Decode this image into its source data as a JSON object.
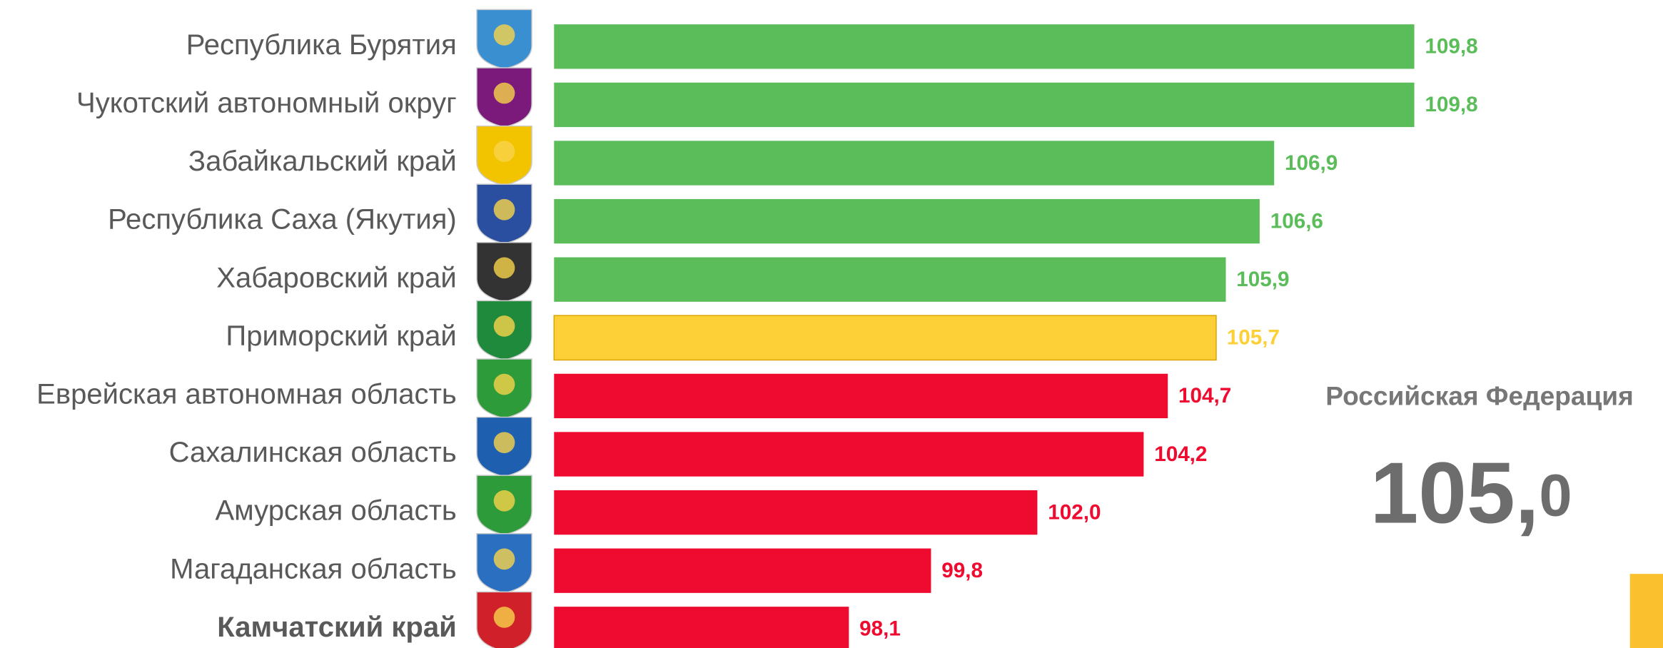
{
  "chart_data": {
    "type": "barh",
    "categories": [
      "Республика Бурятия",
      "Чукотский автономный округ",
      "Забайкальский край",
      "Республика Саха (Якутия)",
      "Хабаровский край",
      "Приморский край",
      "Еврейская автономная область",
      "Сахалинская область",
      "Амурская область",
      "Магаданская область",
      "Камчатский край"
    ],
    "values": [
      109.8,
      109.8,
      106.9,
      106.6,
      105.9,
      105.7,
      104.7,
      104.2,
      102.0,
      99.8,
      98.1
    ],
    "value_labels": [
      "109,8",
      "109,8",
      "106,9",
      "106,6",
      "105,9",
      "105,7",
      "104,7",
      "104,2",
      "102,0",
      "99,8",
      "98,1"
    ],
    "colors": [
      "#5bbd5a",
      "#5bbd5a",
      "#5bbd5a",
      "#5bbd5a",
      "#5bbd5a",
      "#fdd037",
      "#ef0a2f",
      "#ef0a2f",
      "#ef0a2f",
      "#ef0a2f",
      "#ef0a2f"
    ],
    "xlim": [
      92,
      110
    ],
    "annotation": {
      "label": "Российская Федерация",
      "value": 105.0,
      "value_label": "105,0"
    }
  }
}
